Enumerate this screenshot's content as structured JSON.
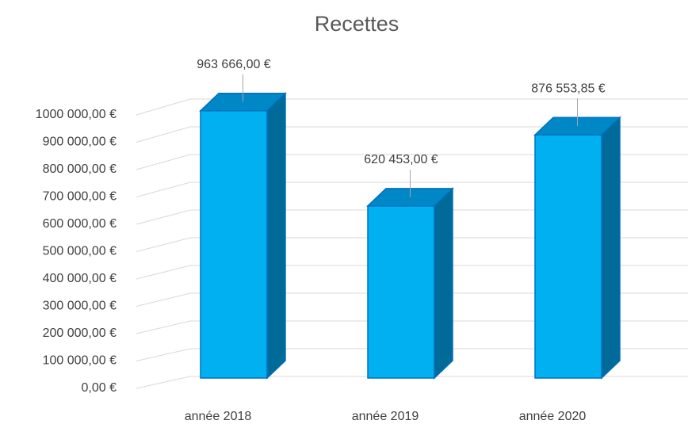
{
  "chart_data": {
    "type": "bar",
    "title": "Recettes",
    "categories": [
      "année 2018",
      "année 2019",
      "année 2020"
    ],
    "values": [
      963666,
      620453,
      876553.85
    ],
    "value_labels": [
      "963 666,00 €",
      "620 453,00 €",
      "876 553,85 €"
    ],
    "color": "#00b0f0",
    "ylim": [
      0,
      1000000
    ],
    "yticks": [
      {
        "value": 0,
        "label": "0,00 €"
      },
      {
        "value": 100000,
        "label": "100 000,00 €"
      },
      {
        "value": 200000,
        "label": "200 000,00 €"
      },
      {
        "value": 300000,
        "label": "300 000,00 €"
      },
      {
        "value": 400000,
        "label": "400 000,00 €"
      },
      {
        "value": 500000,
        "label": "500 000,00 €"
      },
      {
        "value": 600000,
        "label": "600 000,00 €"
      },
      {
        "value": 700000,
        "label": "700 000,00 €"
      },
      {
        "value": 800000,
        "label": "800 000,00 €"
      },
      {
        "value": 900000,
        "label": "900 000,00 €"
      },
      {
        "value": 1000000,
        "label": "1000 000,00 €"
      }
    ],
    "grid": true
  }
}
